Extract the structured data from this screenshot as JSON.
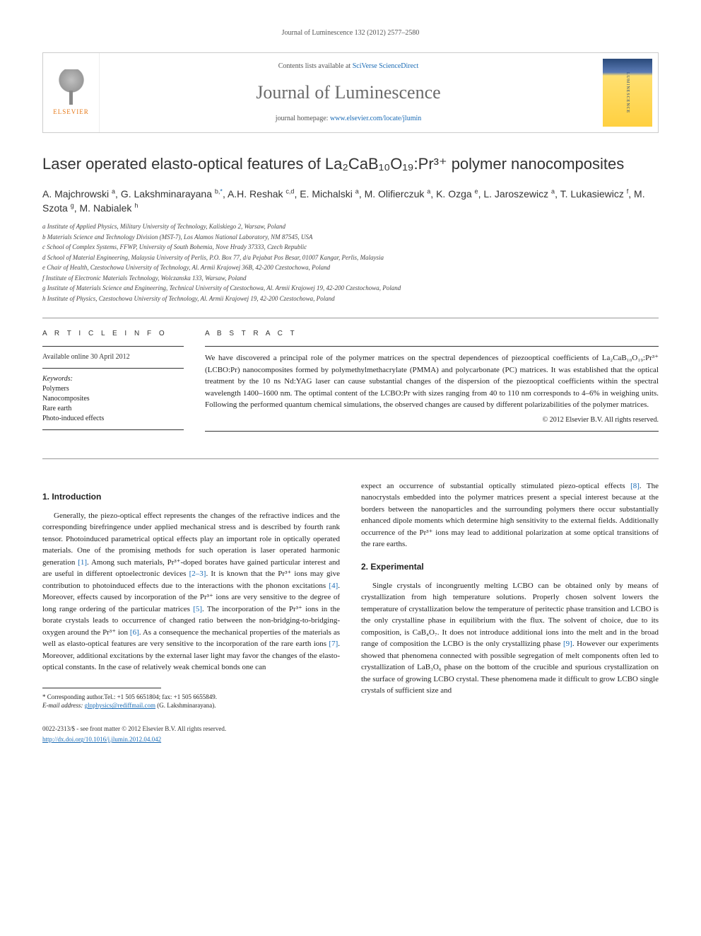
{
  "header": {
    "citation": "Journal of Luminescence 132 (2012) 2577–2580"
  },
  "banner": {
    "publisher": "ELSEVIER",
    "contents_prefix": "Contents lists available at ",
    "contents_link": "SciVerse ScienceDirect",
    "journal_name": "Journal of Luminescence",
    "homepage_prefix": "journal homepage: ",
    "homepage_url": "www.elsevier.com/locate/jlumin",
    "cover_label": "LUMINESCENCE"
  },
  "title": "Laser operated elasto-optical features of La₂CaB₁₀O₁₉:Pr³⁺ polymer nanocomposites",
  "authors_html": "A. Majchrowski <sup>a</sup>, G. Lakshminarayana <sup>b,</sup><sup class='corr'>*</sup>, A.H. Reshak <sup>c,d</sup>, E. Michalski <sup>a</sup>, M. Olifierczuk <sup>a</sup>, K. Ozga <sup>e</sup>, L. Jaroszewicz <sup>a</sup>, T. Lukasiewicz <sup>f</sup>, M. Szota <sup>g</sup>, M. Nabialek <sup>h</sup>",
  "affiliations": [
    "a Institute of Applied Physics, Military University of Technology, Kaliskiego 2, Warsaw, Poland",
    "b Materials Science and Technology Division (MST-7), Los Alamos National Laboratory, NM 87545, USA",
    "c School of Complex Systems, FFWP, University of South Bohemia, Nove Hrady 37333, Czech Republic",
    "d School of Material Engineering, Malaysia University of Perlis, P.O. Box 77, d/a Pejabat Pos Besar, 01007 Kangar, Perlis, Malaysia",
    "e Chair of Health, Czestochowa University of Technology, Al. Armii Krajowej 36B, 42-200 Czestochowa, Poland",
    "f Institute of Electronic Materials Technology, Wolczanska 133, Warsaw, Poland",
    "g Institute of Materials Science and Engineering, Technical University of Czestochowa, Al. Armii Krajowej 19, 42-200 Czestochowa, Poland",
    "h Institute of Physics, Czestochowa University of Technology, Al. Armii Krajowej 19, 42-200 Czestochowa, Poland"
  ],
  "article_info": {
    "label": "A R T I C L E   I N F O",
    "available": "Available online 30 April 2012",
    "keywords_label": "Keywords:",
    "keywords": [
      "Polymers",
      "Nanocomposites",
      "Rare earth",
      "Photo-induced effects"
    ]
  },
  "abstract": {
    "label": "A B S T R A C T",
    "text": "We have discovered a principal role of the polymer matrices on the spectral dependences of piezooptical coefficients of La₂CaB₁₀O₁₉:Pr³⁺ (LCBO:Pr) nanocomposites formed by polymethylmethacrylate (PMMA) and polycarbonate (PC) matrices. It was established that the optical treatment by the 10 ns Nd:YAG laser can cause substantial changes of the dispersion of the piezooptical coefficients within the spectral wavelength 1400–1600 nm. The optimal content of the LCBO:Pr with sizes ranging from 40 to 110 nm corresponds to 4–6% in weighing units. Following the performed quantum chemical simulations, the observed changes are caused by different polarizabilities of the polymer matrices.",
    "copyright": "© 2012 Elsevier B.V. All rights reserved."
  },
  "sections": {
    "intro": {
      "heading": "1. Introduction",
      "p1": "Generally, the piezo-optical effect represents the changes of the refractive indices and the corresponding birefringence under applied mechanical stress and is described by fourth rank tensor. Photoinduced parametrical optical effects play an important role in optically operated materials. One of the promising methods for such operation is laser operated harmonic generation [1]. Among such materials, Pr³⁺-doped borates have gained particular interest and are useful in different optoelectronic devices [2–3]. It is known that the Pr³⁺ ions may give contribution to photoinduced effects due to the interactions with the phonon excitations [4]. Moreover, effects caused by incorporation of the Pr³⁺ ions are very sensitive to the degree of long range ordering of the particular matrices [5]. The incorporation of the Pr³⁺ ions in the borate crystals leads to occurrence of changed ratio between the non-bridging-to-bridging-oxygen around the Pr³⁺ ion [6]. As a consequence the mechanical properties of the materials as well as elasto-optical features are very sensitive to the incorporation of the rare earth ions [7]. Moreover, additional excitations by the external laser light may favor the changes of the elasto-optical constants. In the case of relatively weak chemical bonds one can",
      "p1_cont": "expect an occurrence of substantial optically stimulated piezo-optical effects [8]. The nanocrystals embedded into the polymer matrices present a special interest because at the borders between the nanoparticles and the surrounding polymers there occur substantially enhanced dipole moments which determine high sensitivity to the external fields. Additionally occurrence of the Pr³⁺ ions may lead to additional polarization at some optical transitions of the rare earths."
    },
    "exp": {
      "heading": "2. Experimental",
      "p1": "Single crystals of incongruently melting LCBO can be obtained only by means of crystallization from high temperature solutions. Properly chosen solvent lowers the temperature of crystallization below the temperature of peritectic phase transition and LCBO is the only crystalline phase in equilibrium with the flux. The solvent of choice, due to its composition, is CaB₄O₇. It does not introduce additional ions into the melt and in the broad range of composition the LCBO is the only crystallizing phase [9]. However our experiments showed that phenomena connected with possible segregation of melt components often led to crystallization of LaB₃O₆ phase on the bottom of the crucible and spurious crystallization on the surface of growing LCBO crystal. These phenomena made it difficult to grow LCBO single crystals of sufficient size and"
    }
  },
  "footnote": {
    "corr": "* Corresponding author.Tel.: +1 505 6651804; fax: +1 505 6655849.",
    "email_label": "E-mail address: ",
    "email": "glnphysics@rediffmail.com",
    "email_name": " (G. Lakshminarayana)."
  },
  "bottom": {
    "issn": "0022-2313/$ - see front matter © 2012 Elsevier B.V. All rights reserved.",
    "doi": "http://dx.doi.org/10.1016/j.jlumin.2012.04.042"
  },
  "colors": {
    "link": "#1a6bb5",
    "publisher": "#e67817",
    "text": "#222222",
    "muted": "#555555",
    "border": "#cccccc"
  }
}
